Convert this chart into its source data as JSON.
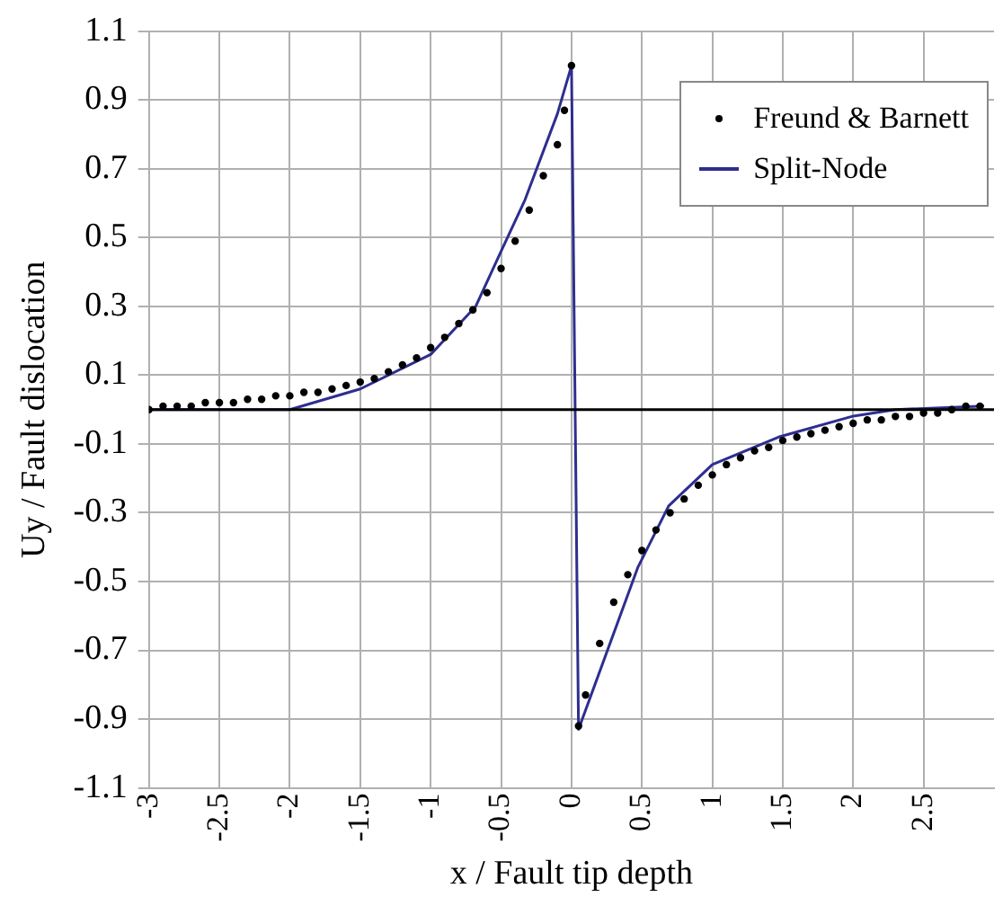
{
  "chart_data": {
    "type": "line",
    "xlabel": "x / Fault tip depth",
    "ylabel": "Uy / Fault dislocation",
    "xlim": [
      -3,
      3
    ],
    "xticks": [
      -3,
      -2.5,
      -2,
      -1.5,
      -1,
      -0.5,
      0,
      0.5,
      1,
      1.5,
      2,
      2.5
    ],
    "ylim": [
      -1.1,
      1.1
    ],
    "yticks": [
      -1.1,
      -0.9,
      -0.7,
      -0.5,
      -0.3,
      -0.1,
      0.1,
      0.3,
      0.5,
      0.7,
      0.9,
      1.1
    ],
    "grid": true,
    "legend": "top right",
    "ref_lines": [
      {
        "axis": "y",
        "value": 0,
        "color": "#000000"
      }
    ],
    "series": [
      {
        "name": "Freund & Barnett",
        "type": "scatter",
        "marker": "circle",
        "color": "#000000",
        "x": [
          -3,
          -2.9,
          -2.8,
          -2.7,
          -2.6,
          -2.5,
          -2.4,
          -2.3,
          -2.2,
          -2.1,
          -2,
          -1.9,
          -1.8,
          -1.7,
          -1.6,
          -1.5,
          -1.4,
          -1.3,
          -1.2,
          -1.1,
          -1,
          -0.9,
          -0.8,
          -0.7,
          -0.6,
          -0.5,
          -0.4,
          -0.3,
          -0.2,
          -0.1,
          -0.05,
          0,
          0.05,
          0.1,
          0.2,
          0.3,
          0.4,
          0.5,
          0.6,
          0.7,
          0.8,
          0.9,
          1,
          1.1,
          1.2,
          1.3,
          1.4,
          1.5,
          1.6,
          1.7,
          1.8,
          1.9,
          2,
          2.1,
          2.2,
          2.3,
          2.4,
          2.5,
          2.6,
          2.7,
          2.8,
          2.9
        ],
        "values": [
          0,
          0.01,
          0.01,
          0.01,
          0.02,
          0.02,
          0.02,
          0.03,
          0.03,
          0.04,
          0.04,
          0.05,
          0.05,
          0.06,
          0.07,
          0.08,
          0.09,
          0.11,
          0.13,
          0.15,
          0.18,
          0.21,
          0.25,
          0.29,
          0.34,
          0.41,
          0.49,
          0.58,
          0.68,
          0.77,
          0.87,
          1,
          -0.92,
          -0.83,
          -0.68,
          -0.56,
          -0.48,
          -0.41,
          -0.35,
          -0.3,
          -0.26,
          -0.22,
          -0.19,
          -0.16,
          -0.14,
          -0.12,
          -0.11,
          -0.09,
          -0.08,
          -0.07,
          -0.06,
          -0.05,
          -0.04,
          -0.03,
          -0.03,
          -0.02,
          -0.02,
          -0.01,
          -0.01,
          0,
          0.01,
          0.01
        ]
      },
      {
        "name": "Split-Node",
        "type": "line",
        "marker": "none",
        "color": "#2e2e8f",
        "x": [
          -3,
          -2,
          -1.5,
          -1,
          -0.68,
          -0.5,
          -0.33,
          -0.1,
          0,
          0.05,
          0.47,
          0.69,
          1,
          1.47,
          1.99,
          2.3,
          2.93
        ],
        "values": [
          0,
          0,
          0.06,
          0.16,
          0.3,
          0.46,
          0.61,
          0.86,
          1,
          -0.93,
          -0.46,
          -0.28,
          -0.16,
          -0.08,
          -0.02,
          0,
          0.01
        ]
      }
    ]
  }
}
